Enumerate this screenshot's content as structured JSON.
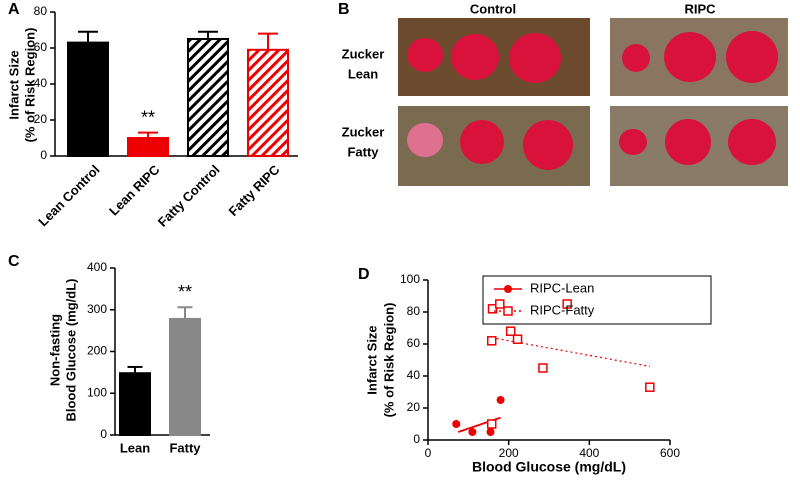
{
  "chart_data": [
    {
      "type": "bar",
      "panel": "A",
      "ylabel": [
        "Infarct Size",
        "(% of Risk Region)"
      ],
      "categories": [
        "Lean Control",
        "Lean RIPC",
        "Fatty Control",
        "Fatty RIPC"
      ],
      "values": [
        63,
        10,
        65,
        59
      ],
      "errors": [
        6,
        3,
        4,
        9
      ],
      "colors": [
        "#000000",
        "#ee0000",
        "#000000",
        "#ee0000"
      ],
      "patterns": [
        "solid",
        "solid",
        "hatch",
        "hatch"
      ],
      "ylim": [
        0,
        80
      ],
      "yticks": [
        0,
        20,
        40,
        60,
        80
      ],
      "annotations": [
        {
          "text": "**",
          "category": "Lean RIPC"
        }
      ]
    },
    {
      "type": "bar",
      "panel": "C",
      "ylabel": [
        "Non-fasting",
        "Blood Glucose (mg/dL)"
      ],
      "categories": [
        "Lean",
        "Fatty"
      ],
      "values": [
        148,
        278
      ],
      "errors": [
        15,
        28
      ],
      "colors": [
        "#000000",
        "#888888"
      ],
      "patterns": [
        "solid",
        "solid"
      ],
      "ylim": [
        0,
        400
      ],
      "yticks": [
        0,
        100,
        200,
        300,
        400
      ],
      "annotations": [
        {
          "text": "**",
          "category": "Fatty"
        }
      ]
    },
    {
      "type": "scatter",
      "panel": "D",
      "xlabel": "Blood Glucose (mg/dL)",
      "ylabel": [
        "Infarct Size",
        "(% of Risk  Region)"
      ],
      "xlim": [
        0,
        600
      ],
      "xticks": [
        0,
        200,
        400,
        600
      ],
      "ylim": [
        0,
        100
      ],
      "yticks": [
        0,
        20,
        40,
        60,
        80,
        100
      ],
      "series": [
        {
          "name": "RIPC-Lean",
          "color": "#ee0000",
          "marker": "circle",
          "x": [
            70,
            110,
            155,
            180
          ],
          "values": [
            10,
            5,
            5,
            25
          ],
          "trend": {
            "x": [
              75,
              180
            ],
            "y": [
              5,
              14
            ],
            "style": "solid"
          }
        },
        {
          "name": "RIPC-Fatty",
          "color": "#ee0000",
          "marker": "square",
          "x": [
            158,
            160,
            178,
            158,
            205,
            222,
            285,
            345,
            550
          ],
          "values": [
            62,
            82,
            85,
            10,
            68,
            63,
            45,
            85,
            33
          ],
          "trend": {
            "x": [
              158,
              550
            ],
            "y": [
              64,
              46
            ],
            "style": "dotted"
          }
        }
      ]
    }
  ],
  "panel_b": {
    "panel": "B",
    "columns": [
      "Control",
      "RIPC"
    ],
    "rows": [
      [
        "Zucker",
        "Lean"
      ],
      [
        "Zucker",
        "Fatty"
      ]
    ]
  }
}
